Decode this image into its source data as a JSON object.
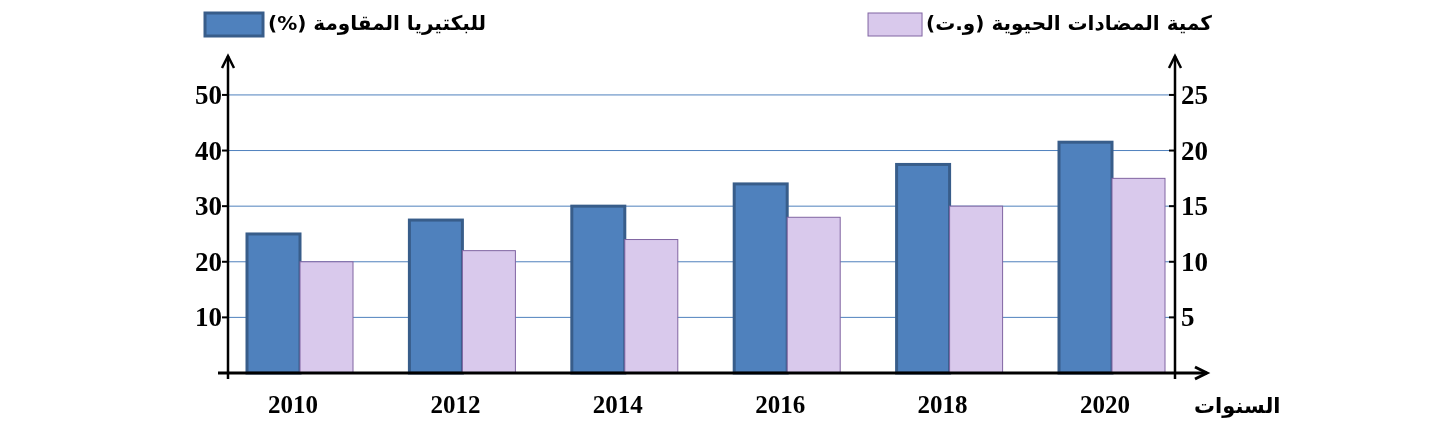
{
  "chart_data": {
    "type": "bar",
    "categories": [
      "2010",
      "2012",
      "2014",
      "2016",
      "2018",
      "2020"
    ],
    "xlabel": "السنوات",
    "series": [
      {
        "name": "للبكتيريا المقاومة (%)",
        "color": "#4f81bd",
        "values": [
          25,
          27.5,
          30,
          34,
          37.5,
          41.5
        ]
      },
      {
        "name": "كمية المضادات الحيوية (و.ت)",
        "color": "#d9c9ec",
        "axis": "y2",
        "values": [
          10,
          11,
          12,
          14,
          15,
          17.5
        ]
      }
    ],
    "ylim": [
      0,
      57
    ],
    "yticks": [
      10,
      20,
      30,
      40,
      50
    ],
    "y2lim": [
      0,
      28.5
    ],
    "y2ticks": [
      5,
      10,
      15,
      20,
      25
    ],
    "grid": "y",
    "legend": "top"
  }
}
